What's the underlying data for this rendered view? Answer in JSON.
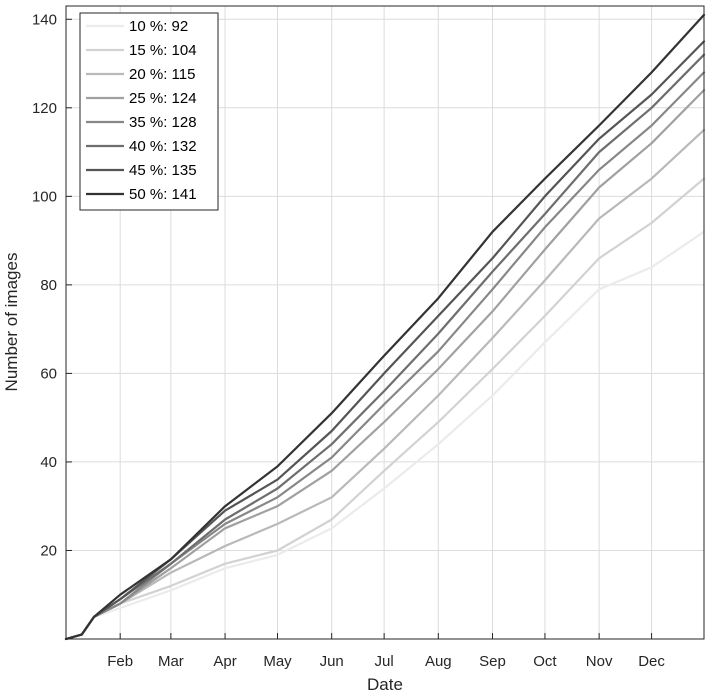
{
  "chart_data": {
    "type": "line",
    "xlabel": "Date",
    "ylabel": "Number of images",
    "xlim_day": [
      1,
      366
    ],
    "ylim": [
      0,
      143
    ],
    "x_ticks": [
      {
        "label": "Feb",
        "day": 32
      },
      {
        "label": "Mar",
        "day": 61
      },
      {
        "label": "Apr",
        "day": 92
      },
      {
        "label": "May",
        "day": 122
      },
      {
        "label": "Jun",
        "day": 153
      },
      {
        "label": "Jul",
        "day": 183
      },
      {
        "label": "Aug",
        "day": 214
      },
      {
        "label": "Sep",
        "day": 245
      },
      {
        "label": "Oct",
        "day": 275
      },
      {
        "label": "Nov",
        "day": 306
      },
      {
        "label": "Dec",
        "day": 336
      }
    ],
    "y_ticks": [
      20,
      40,
      60,
      80,
      100,
      120,
      140
    ],
    "grid": true,
    "legend_position": "top-left",
    "series": [
      {
        "name": "10 %: 92",
        "color": "#ebebeb",
        "days": [
          1,
          10,
          17,
          32,
          61,
          92,
          122,
          153,
          183,
          214,
          245,
          275,
          306,
          336,
          366
        ],
        "values": [
          0,
          1,
          5,
          7,
          11,
          16,
          19,
          25,
          34,
          44,
          55,
          67,
          79,
          84,
          92
        ]
      },
      {
        "name": "15 %: 104",
        "color": "#d2d2d2",
        "days": [
          1,
          10,
          17,
          32,
          61,
          92,
          122,
          153,
          183,
          214,
          245,
          275,
          306,
          336,
          366
        ],
        "values": [
          0,
          1,
          5,
          8,
          12,
          17,
          20,
          27,
          38,
          49,
          61,
          73,
          86,
          94,
          104
        ]
      },
      {
        "name": "20 %: 115",
        "color": "#b9b9b9",
        "days": [
          1,
          10,
          17,
          32,
          61,
          92,
          122,
          153,
          183,
          214,
          245,
          275,
          306,
          336,
          366
        ],
        "values": [
          0,
          1,
          5,
          8,
          15,
          21,
          26,
          32,
          43,
          55,
          68,
          81,
          95,
          104,
          115
        ]
      },
      {
        "name": "25 %: 124",
        "color": "#a0a0a0",
        "days": [
          1,
          10,
          17,
          32,
          61,
          92,
          122,
          153,
          183,
          214,
          245,
          275,
          306,
          336,
          366
        ],
        "values": [
          0,
          1,
          5,
          8,
          16,
          25,
          30,
          38,
          49,
          61,
          74,
          88,
          102,
          112,
          124
        ]
      },
      {
        "name": "35 %: 128",
        "color": "#878787",
        "days": [
          1,
          10,
          17,
          32,
          61,
          92,
          122,
          153,
          183,
          214,
          245,
          275,
          306,
          336,
          366
        ],
        "values": [
          0,
          1,
          5,
          8,
          17,
          26,
          32,
          41,
          53,
          65,
          79,
          93,
          106,
          116,
          128
        ]
      },
      {
        "name": "40 %: 132",
        "color": "#6e6e6e",
        "days": [
          1,
          10,
          17,
          32,
          61,
          92,
          122,
          153,
          183,
          214,
          245,
          275,
          306,
          336,
          366
        ],
        "values": [
          0,
          1,
          5,
          9,
          17,
          27,
          34,
          44,
          56,
          69,
          83,
          96,
          110,
          120,
          132
        ]
      },
      {
        "name": "45 %: 135",
        "color": "#555555",
        "days": [
          1,
          10,
          17,
          32,
          61,
          92,
          122,
          153,
          183,
          214,
          245,
          275,
          306,
          336,
          366
        ],
        "values": [
          0,
          1,
          5,
          9,
          18,
          29,
          36,
          47,
          60,
          73,
          86,
          100,
          113,
          123,
          135
        ]
      },
      {
        "name": "50 %: 141",
        "color": "#333333",
        "days": [
          1,
          10,
          17,
          32,
          61,
          92,
          122,
          153,
          183,
          214,
          245,
          275,
          306,
          336,
          366
        ],
        "values": [
          0,
          1,
          5,
          10,
          18,
          30,
          39,
          51,
          64,
          77,
          92,
          104,
          116,
          128,
          141
        ]
      }
    ]
  }
}
